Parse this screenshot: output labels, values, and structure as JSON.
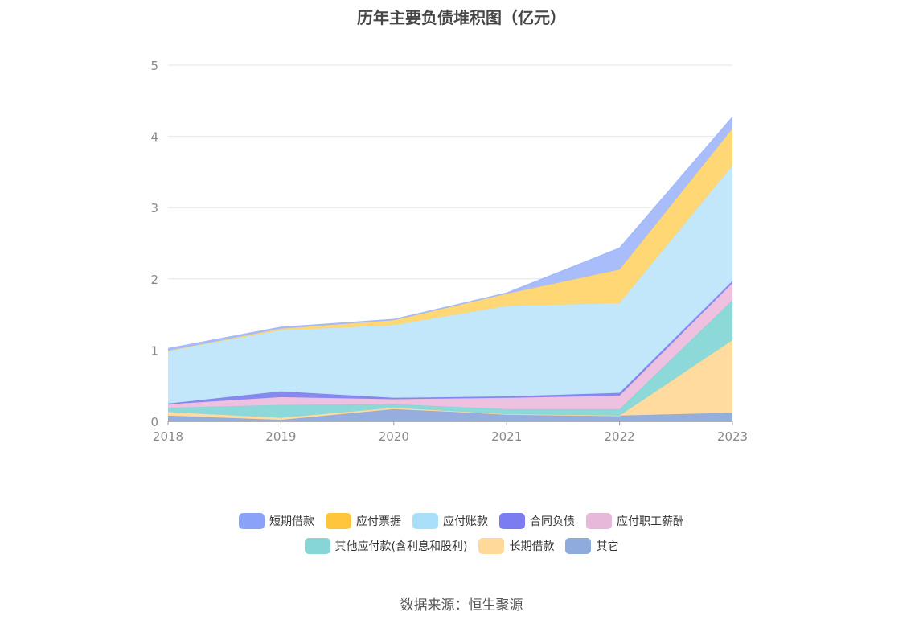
{
  "title": "历年主要负债堆积图（亿元）",
  "source": "数据来源：恒生聚源",
  "chart_data": {
    "type": "area",
    "stacked": true,
    "title": "历年主要负债堆积图（亿元）",
    "unit": "亿元",
    "categories": [
      "2018",
      "2019",
      "2020",
      "2021",
      "2022",
      "2023"
    ],
    "ylim": [
      0,
      5
    ],
    "yticks": [
      0,
      1,
      2,
      3,
      4,
      5
    ],
    "grid": true,
    "legend_position": "bottom",
    "series": [
      {
        "name": "其它",
        "color": "#8FAADC",
        "values": [
          0.08,
          0.02,
          0.17,
          0.1,
          0.08,
          0.12
        ]
      },
      {
        "name": "长期借款",
        "color": "#FFD99A",
        "values": [
          0.05,
          0.03,
          0.02,
          0.0,
          0.0,
          1.02
        ]
      },
      {
        "name": "其他应付款(含利息和股利)",
        "color": "#87D6D6",
        "values": [
          0.06,
          0.18,
          0.05,
          0.07,
          0.09,
          0.56
        ]
      },
      {
        "name": "应付职工薪酬",
        "color": "#EDBEDF",
        "values": [
          0.05,
          0.11,
          0.07,
          0.16,
          0.19,
          0.24
        ]
      },
      {
        "name": "合同负债",
        "color": "#8283EE",
        "values": [
          0.01,
          0.08,
          0.02,
          0.02,
          0.04,
          0.03
        ]
      },
      {
        "name": "应付账款",
        "color": "#BFE6FA",
        "values": [
          0.74,
          0.86,
          1.02,
          1.27,
          1.26,
          1.62
        ]
      },
      {
        "name": "应付票据",
        "color": "#FFD56E",
        "values": [
          0.0,
          0.02,
          0.07,
          0.17,
          0.47,
          0.52
        ]
      },
      {
        "name": "短期借款",
        "color": "#A4B9FB",
        "values": [
          0.03,
          0.02,
          0.01,
          0.01,
          0.3,
          0.16
        ]
      }
    ],
    "legend": [
      {
        "name": "短期借款",
        "color": "#8AA3F8"
      },
      {
        "name": "应付票据",
        "color": "#FFC53D"
      },
      {
        "name": "应付账款",
        "color": "#A9DFF8"
      },
      {
        "name": "合同负债",
        "color": "#7B7CF0"
      },
      {
        "name": "应付职工薪酬",
        "color": "#E8B8DA"
      },
      {
        "name": "其他应付款(含利息和股利)",
        "color": "#85D6D5"
      },
      {
        "name": "长期借款",
        "color": "#FFD99A"
      },
      {
        "name": "其它",
        "color": "#8FAADC"
      }
    ]
  }
}
